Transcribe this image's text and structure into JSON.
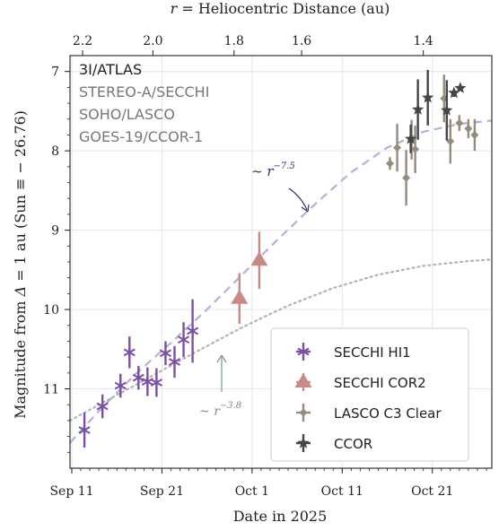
{
  "chart_data": {
    "type": "scatter",
    "xlabel": "Date in 2025",
    "ylabel_prefix": "Magnitude from ",
    "ylabel_delta": "Δ",
    "ylabel_suffix": " = 1 au (Sun ≡ − 26.76)",
    "top_axis_label_r": "r",
    "top_axis_label_rest": " = Heliocentric Distance (au)",
    "x_ticks": [
      {
        "day": 11,
        "label": "Sep 11"
      },
      {
        "day": 21,
        "label": "Sep 21"
      },
      {
        "day": 31,
        "label": "Oct 1"
      },
      {
        "day": 41,
        "label": "Oct 11"
      },
      {
        "day": 51,
        "label": "Oct 21"
      }
    ],
    "x_day_reference": "Sep 0 = day 0",
    "x_range_days": [
      10.8,
      57.6
    ],
    "y_range": [
      12.0,
      6.8
    ],
    "y_inverted": true,
    "y_ticks": [
      7,
      8,
      9,
      10,
      11
    ],
    "top_ticks": [
      {
        "day": 12.2,
        "label": "2.2"
      },
      {
        "day": 20.0,
        "label": "2.0"
      },
      {
        "day": 29.0,
        "label": "1.8"
      },
      {
        "day": 36.5,
        "label": "1.6"
      },
      {
        "day": 50.0,
        "label": "1.4"
      }
    ],
    "object_label": "3I/ATLAS",
    "instruments": [
      "STEREO-A/SECCHI",
      "SOHO/LASCO",
      "GOES-19/CCOR-1"
    ],
    "series": [
      {
        "name": "SECCHI HI1",
        "color": "#7b4fa6",
        "marker": "asterisk",
        "points": [
          {
            "x": 12.4,
            "y": 11.52,
            "err": 0.22
          },
          {
            "x": 14.4,
            "y": 11.22,
            "err": 0.15
          },
          {
            "x": 16.4,
            "y": 10.96,
            "err": 0.15
          },
          {
            "x": 17.4,
            "y": 10.54,
            "err": 0.2
          },
          {
            "x": 18.4,
            "y": 10.86,
            "err": 0.15
          },
          {
            "x": 19.4,
            "y": 10.91,
            "err": 0.18
          },
          {
            "x": 20.4,
            "y": 10.92,
            "err": 0.18
          },
          {
            "x": 21.4,
            "y": 10.55,
            "err": 0.15
          },
          {
            "x": 22.4,
            "y": 10.66,
            "err": 0.2
          },
          {
            "x": 23.4,
            "y": 10.38,
            "err": 0.22
          },
          {
            "x": 24.4,
            "y": 10.27,
            "err": 0.4
          }
        ]
      },
      {
        "name": "SECCHI COR2",
        "color": "#c98a86",
        "marker": "triangle",
        "points": [
          {
            "x": 29.6,
            "y": 9.86,
            "err": 0.32
          },
          {
            "x": 31.8,
            "y": 9.38,
            "err": 0.36
          }
        ]
      },
      {
        "name": "LASCO C3 Clear",
        "color": "#948c7c",
        "marker": "diamond",
        "points": [
          {
            "x": 46.3,
            "y": 8.16,
            "err": 0.08
          },
          {
            "x": 47.1,
            "y": 7.96,
            "err": 0.3
          },
          {
            "x": 48.1,
            "y": 8.34,
            "err": 0.35
          },
          {
            "x": 48.7,
            "y": 7.86,
            "err": 0.25
          },
          {
            "x": 49.1,
            "y": 7.98,
            "err": 0.3
          },
          {
            "x": 52.3,
            "y": 7.34,
            "err": 0.3
          },
          {
            "x": 53.0,
            "y": 7.88,
            "err": 0.28
          },
          {
            "x": 54.0,
            "y": 7.65,
            "err": 0.1
          },
          {
            "x": 55.0,
            "y": 7.72,
            "err": 0.12
          },
          {
            "x": 55.7,
            "y": 7.8,
            "err": 0.2
          }
        ]
      },
      {
        "name": "CCOR",
        "color": "#454545",
        "marker": "star",
        "points": [
          {
            "x": 48.6,
            "y": 7.85,
            "err": 0.18
          },
          {
            "x": 49.4,
            "y": 7.48,
            "err": 0.38
          },
          {
            "x": 50.5,
            "y": 7.33,
            "err": 0.35
          },
          {
            "x": 52.6,
            "y": 7.49,
            "err": 0.38
          },
          {
            "x": 53.4,
            "y": 7.27,
            "err": 0.05
          },
          {
            "x": 54.1,
            "y": 7.21,
            "err": 0.03
          }
        ]
      }
    ],
    "fit_curves": [
      {
        "name": "steep",
        "label_prefix": "~ ",
        "label_var": "r",
        "label_exp": "−7.5",
        "color": "#b6b0d8",
        "label_color": "#2e2e78",
        "style": "dashed",
        "points": [
          {
            "x": 10.8,
            "y": 11.68
          },
          {
            "x": 14.0,
            "y": 11.28
          },
          {
            "x": 18.0,
            "y": 10.82
          },
          {
            "x": 22.0,
            "y": 10.42
          },
          {
            "x": 26.0,
            "y": 10.0
          },
          {
            "x": 30.0,
            "y": 9.55
          },
          {
            "x": 34.0,
            "y": 9.1
          },
          {
            "x": 38.0,
            "y": 8.67
          },
          {
            "x": 42.0,
            "y": 8.27
          },
          {
            "x": 46.0,
            "y": 7.96
          },
          {
            "x": 50.0,
            "y": 7.76
          },
          {
            "x": 54.0,
            "y": 7.66
          },
          {
            "x": 57.6,
            "y": 7.62
          }
        ]
      },
      {
        "name": "shallow",
        "label_prefix": "~ ",
        "label_var": "r",
        "label_exp": "−3.8",
        "color": "#b3b3b3",
        "label_color": "#7a8a8a",
        "style": "dotted",
        "points": [
          {
            "x": 10.8,
            "y": 11.4
          },
          {
            "x": 15.0,
            "y": 11.14
          },
          {
            "x": 20.0,
            "y": 10.83
          },
          {
            "x": 25.0,
            "y": 10.52
          },
          {
            "x": 30.0,
            "y": 10.22
          },
          {
            "x": 35.0,
            "y": 9.95
          },
          {
            "x": 40.0,
            "y": 9.73
          },
          {
            "x": 45.0,
            "y": 9.56
          },
          {
            "x": 50.0,
            "y": 9.45
          },
          {
            "x": 55.0,
            "y": 9.39
          },
          {
            "x": 57.6,
            "y": 9.37
          }
        ]
      }
    ],
    "grid": true,
    "legend_position": "lower-right"
  }
}
